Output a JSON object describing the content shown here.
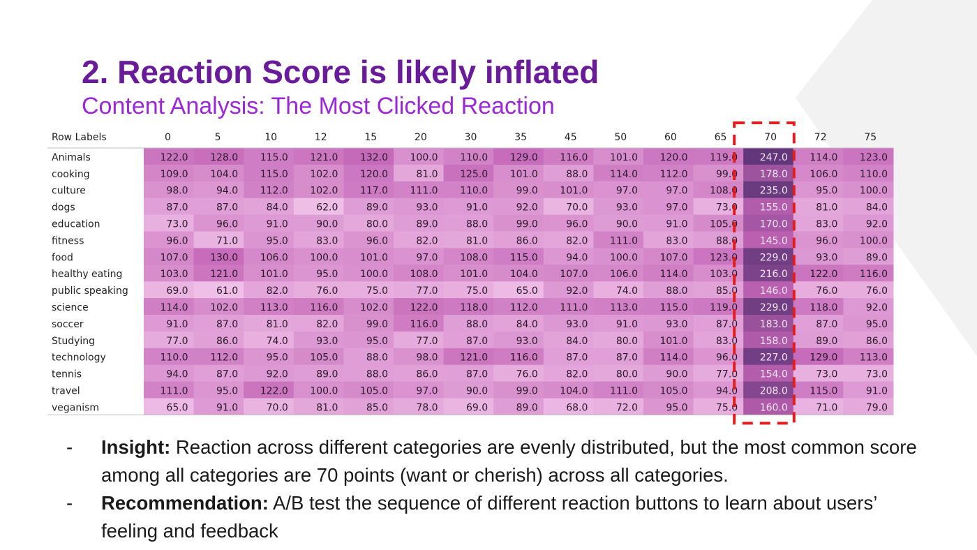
{
  "slide": {
    "title": "2. Reaction Score is likely inflated",
    "subtitle": "Content Analysis: The Most Clicked Reaction"
  },
  "chart_data": {
    "type": "heatmap",
    "row_header": "Row Labels",
    "columns": [
      "0",
      "5",
      "10",
      "12",
      "15",
      "20",
      "30",
      "35",
      "45",
      "50",
      "60",
      "65",
      "70",
      "72",
      "75"
    ],
    "rows": [
      "Animals",
      "cooking",
      "culture",
      "dogs",
      "education",
      "fitness",
      "food",
      "healthy eating",
      "public speaking",
      "science",
      "soccer",
      "Studying",
      "technology",
      "tennis",
      "travel",
      "veganism"
    ],
    "values": [
      [
        122.0,
        128.0,
        115.0,
        121.0,
        132.0,
        100.0,
        110.0,
        129.0,
        116.0,
        101.0,
        120.0,
        119.0,
        247.0,
        114.0,
        123.0
      ],
      [
        109.0,
        104.0,
        115.0,
        102.0,
        120.0,
        81.0,
        125.0,
        101.0,
        88.0,
        114.0,
        112.0,
        99.0,
        178.0,
        106.0,
        110.0
      ],
      [
        98.0,
        94.0,
        112.0,
        102.0,
        117.0,
        111.0,
        110.0,
        99.0,
        101.0,
        97.0,
        97.0,
        108.0,
        235.0,
        95.0,
        100.0
      ],
      [
        87.0,
        87.0,
        84.0,
        62.0,
        89.0,
        93.0,
        91.0,
        92.0,
        70.0,
        93.0,
        97.0,
        73.0,
        155.0,
        81.0,
        84.0
      ],
      [
        73.0,
        96.0,
        91.0,
        90.0,
        80.0,
        89.0,
        88.0,
        99.0,
        96.0,
        90.0,
        91.0,
        105.0,
        170.0,
        83.0,
        92.0
      ],
      [
        96.0,
        71.0,
        95.0,
        83.0,
        96.0,
        82.0,
        81.0,
        86.0,
        82.0,
        111.0,
        83.0,
        88.0,
        145.0,
        96.0,
        100.0
      ],
      [
        107.0,
        130.0,
        106.0,
        100.0,
        101.0,
        97.0,
        108.0,
        115.0,
        94.0,
        100.0,
        107.0,
        123.0,
        229.0,
        93.0,
        89.0
      ],
      [
        103.0,
        121.0,
        101.0,
        95.0,
        100.0,
        108.0,
        101.0,
        104.0,
        107.0,
        106.0,
        114.0,
        103.0,
        216.0,
        122.0,
        116.0
      ],
      [
        69.0,
        61.0,
        82.0,
        76.0,
        75.0,
        77.0,
        75.0,
        65.0,
        92.0,
        74.0,
        88.0,
        85.0,
        146.0,
        76.0,
        76.0
      ],
      [
        114.0,
        102.0,
        113.0,
        116.0,
        102.0,
        122.0,
        118.0,
        112.0,
        111.0,
        113.0,
        115.0,
        119.0,
        229.0,
        118.0,
        92.0
      ],
      [
        91.0,
        87.0,
        81.0,
        82.0,
        99.0,
        116.0,
        88.0,
        84.0,
        93.0,
        91.0,
        93.0,
        87.0,
        183.0,
        87.0,
        95.0
      ],
      [
        77.0,
        86.0,
        74.0,
        93.0,
        95.0,
        77.0,
        87.0,
        93.0,
        84.0,
        80.0,
        101.0,
        83.0,
        158.0,
        89.0,
        86.0
      ],
      [
        110.0,
        112.0,
        95.0,
        105.0,
        88.0,
        98.0,
        121.0,
        116.0,
        87.0,
        87.0,
        114.0,
        96.0,
        227.0,
        129.0,
        113.0
      ],
      [
        94.0,
        87.0,
        92.0,
        89.0,
        88.0,
        86.0,
        87.0,
        76.0,
        82.0,
        80.0,
        90.0,
        77.0,
        154.0,
        73.0,
        73.0
      ],
      [
        111.0,
        95.0,
        122.0,
        100.0,
        105.0,
        97.0,
        90.0,
        99.0,
        104.0,
        111.0,
        105.0,
        94.0,
        208.0,
        115.0,
        91.0
      ],
      [
        65.0,
        91.0,
        70.0,
        81.0,
        85.0,
        78.0,
        69.0,
        89.0,
        68.0,
        72.0,
        95.0,
        75.0,
        160.0,
        71.0,
        79.0
      ]
    ],
    "highlight_column": "70",
    "color_range": [
      60,
      250
    ],
    "colors": {
      "low": "#f0c0e8",
      "mid": "#c364b6",
      "high": "#5e3578",
      "highlight_border": "#e31c1c"
    }
  },
  "bullets": [
    {
      "dash": "-",
      "label": "Insight:",
      "text": " Reaction across different categories are evenly distributed, but the most common score among all categories are 70 points (want or cherish) across all categories."
    },
    {
      "dash": "-",
      "label": "Recommendation:",
      "text": " A/B test the sequence of different reaction buttons to learn about users’ feeling and feedback"
    }
  ]
}
